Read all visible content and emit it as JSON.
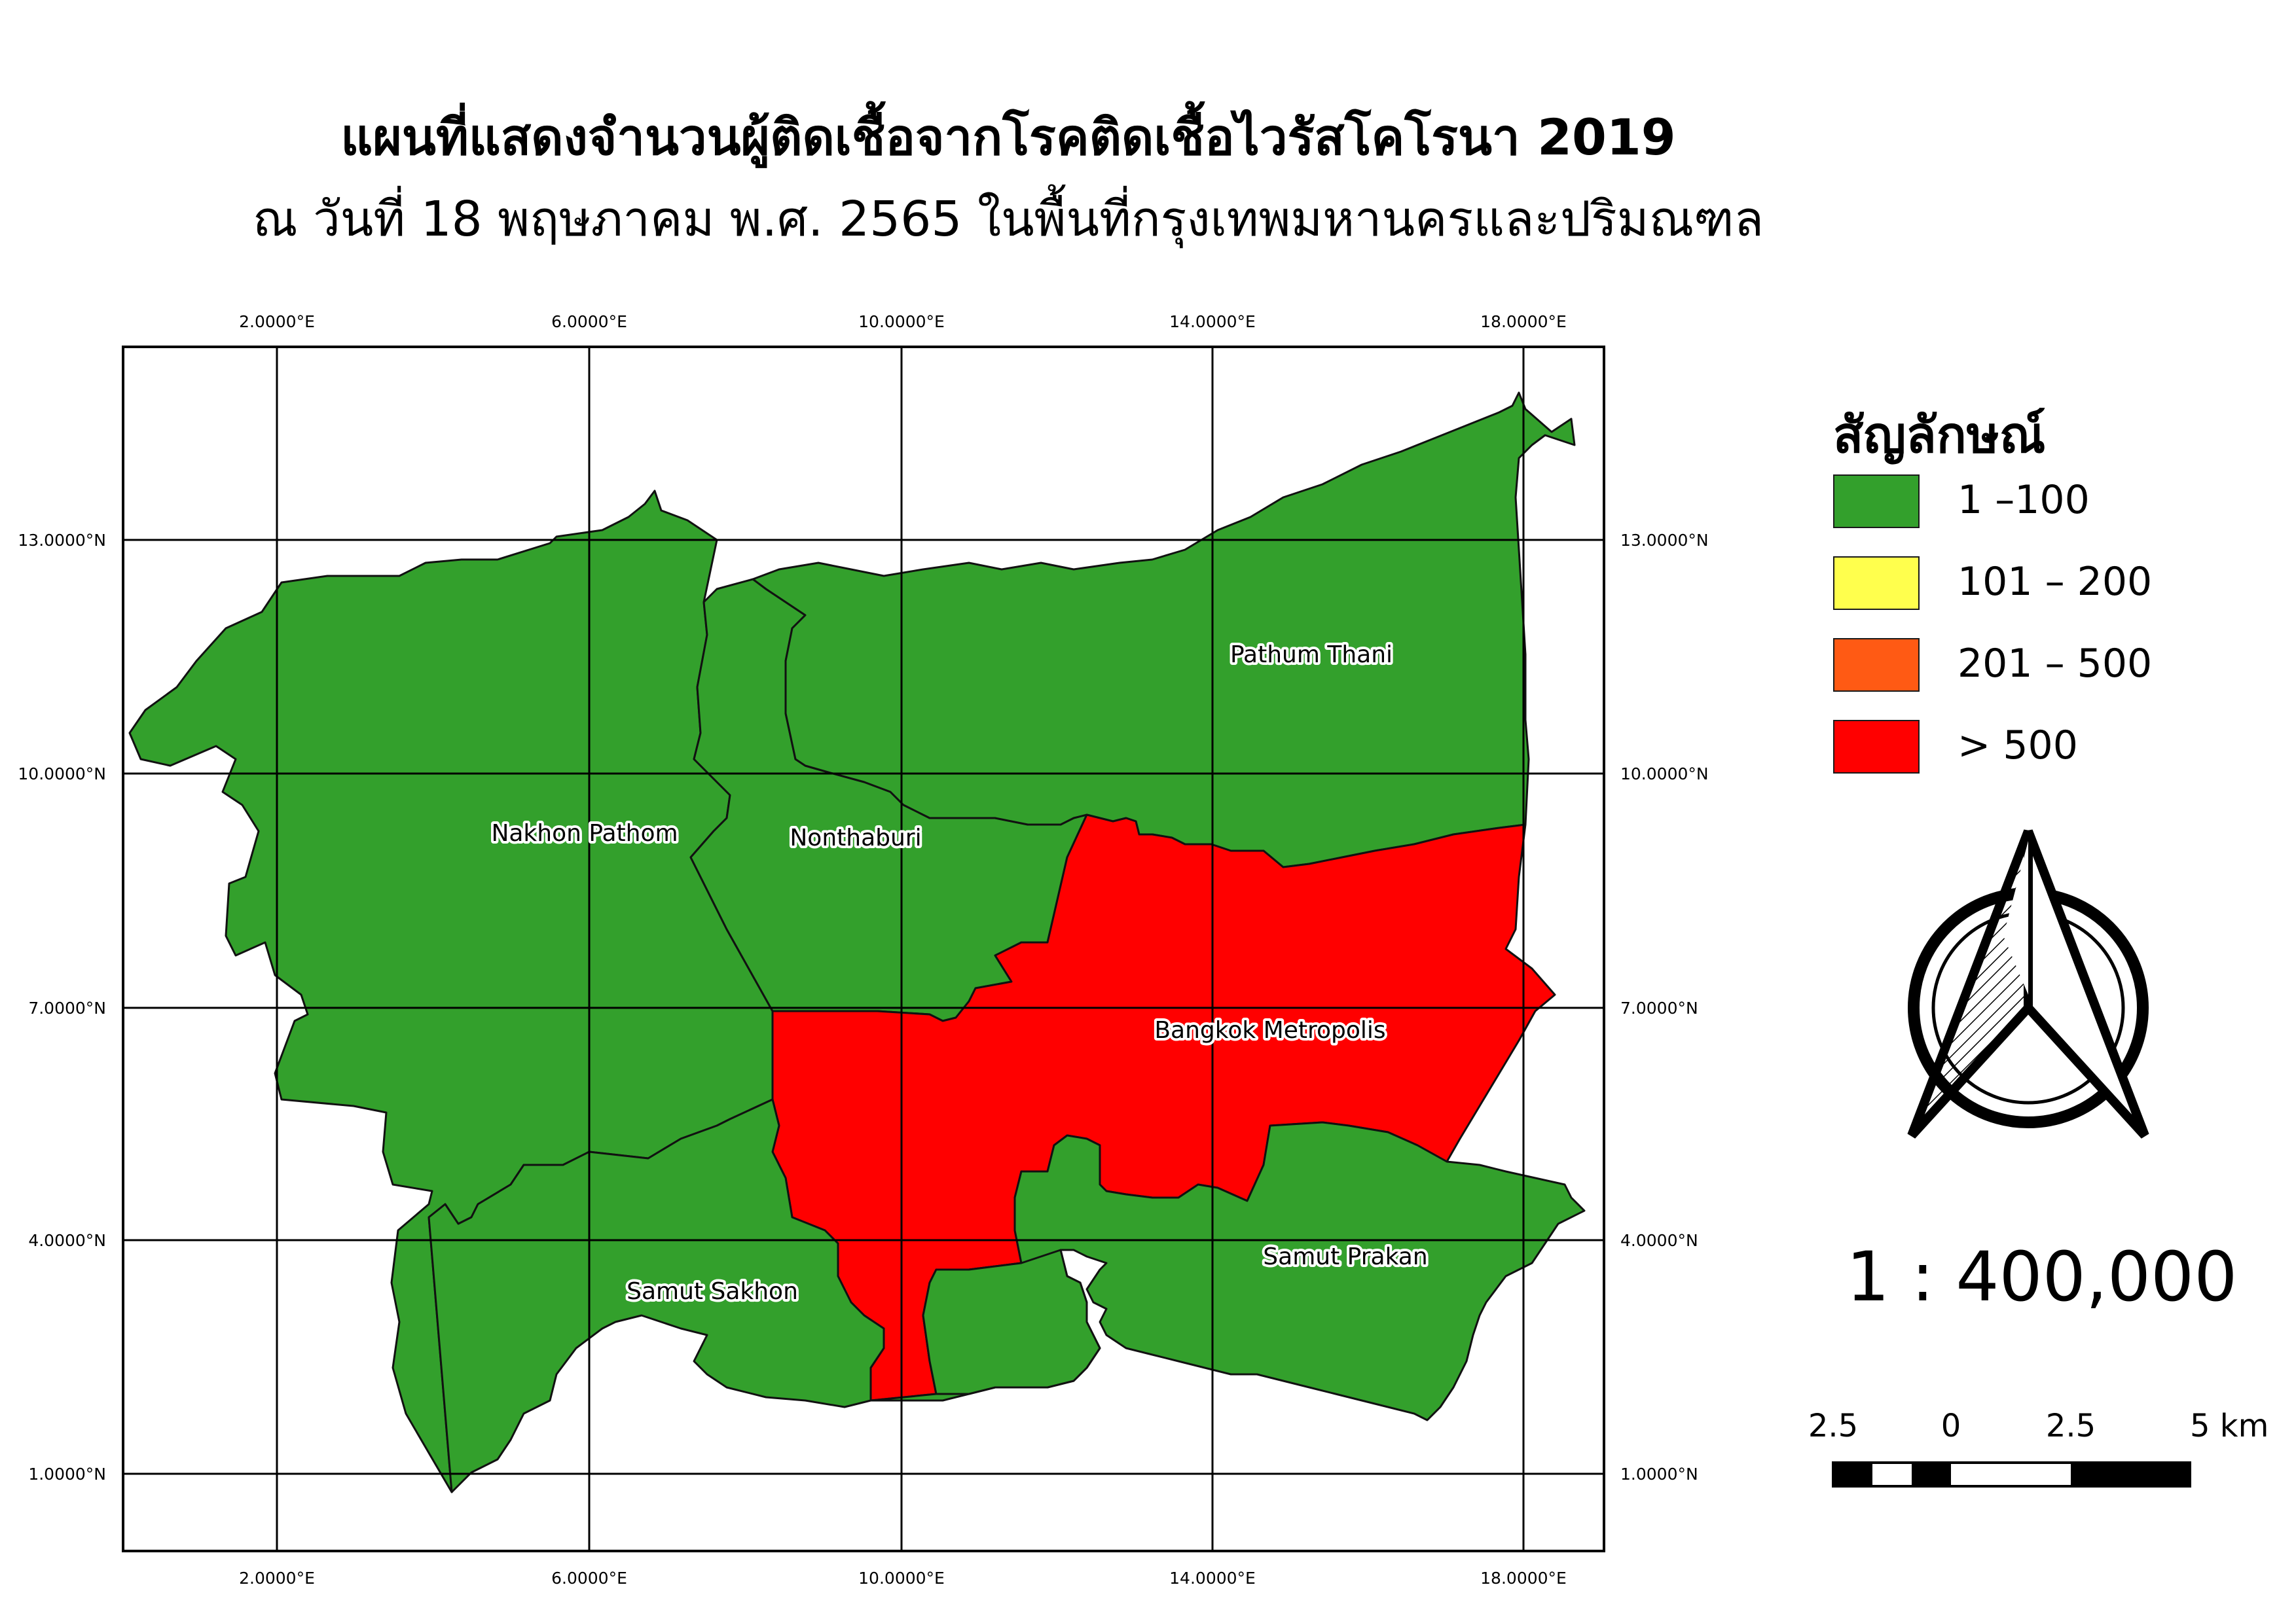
{
  "title": {
    "main": "แผนที่แสดงจำนวนผู้ติดเชื้อจากโรคติดเชื้อไวรัสโคโรนา 2019",
    "sub": "ณ วันที่ 18 พฤษภาคม พ.ศ. 2565 ในพื้นที่กรุงเทพมหานครและปริมณฑล"
  },
  "map": {
    "grid_x_labels": [
      "2.0000°E",
      "6.0000°E",
      "10.0000°E",
      "14.0000°E",
      "18.0000°E"
    ],
    "grid_y_labels": [
      "13.0000°N",
      "10.0000°N",
      "7.0000°N",
      "4.0000°N",
      "1.0000°N"
    ],
    "regions": [
      {
        "name": "Nakhon Pathom",
        "class": "1-100",
        "color": "#33a02c"
      },
      {
        "name": "Nonthaburi",
        "class": "1-100",
        "color": "#33a02c"
      },
      {
        "name": "Pathum Thani",
        "class": "1-100",
        "color": "#33a02c"
      },
      {
        "name": "Bangkok Metropolis",
        "class": ">500",
        "color": "#ff0000"
      },
      {
        "name": "Samut Sakhon",
        "class": "1-100",
        "color": "#33a02c"
      },
      {
        "name": "Samut Prakan",
        "class": "1-100",
        "color": "#33a02c"
      }
    ]
  },
  "legend": {
    "title": "สัญลักษณ์",
    "items": [
      {
        "label": "1 –100",
        "color": "#33a02c"
      },
      {
        "label": "101 – 200",
        "color": "#ffff4d"
      },
      {
        "label": "201 – 500",
        "color": "#ff5a14"
      },
      {
        "label": "> 500",
        "color": "#ff0000"
      }
    ]
  },
  "north_arrow": {
    "icon": "north-arrow-icon"
  },
  "scale": {
    "ratio": "1 : 400,000",
    "bar_labels": [
      "2.5",
      "0",
      "2.5",
      "5 km"
    ]
  }
}
